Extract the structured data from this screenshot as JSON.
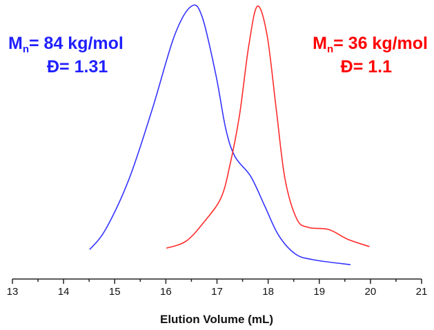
{
  "chart_data": {
    "type": "line",
    "title": "",
    "xlabel": "Elution Volume (mL)",
    "ylabel": "",
    "xlim": [
      13,
      21
    ],
    "x_ticks": [
      "13",
      "14",
      "15",
      "16",
      "17",
      "18",
      "19",
      "20",
      "21"
    ],
    "y_axis_shown": false,
    "grid": false,
    "series": [
      {
        "color": "#3333ff",
        "x": [
          14.51,
          14.82,
          15.28,
          15.73,
          16.17,
          16.5,
          16.71,
          16.98,
          17.17,
          17.35,
          17.66,
          17.93,
          18.2,
          18.52,
          18.87,
          19.61
        ],
        "y": [
          0.085,
          0.16,
          0.35,
          0.61,
          0.89,
          1.0,
          0.96,
          0.74,
          0.54,
          0.435,
          0.36,
          0.25,
          0.14,
          0.07,
          0.047,
          0.028
        ]
      },
      {
        "color": "#ff2a2a",
        "x": [
          16.01,
          16.4,
          16.77,
          17.08,
          17.25,
          17.44,
          17.62,
          17.79,
          17.98,
          18.16,
          18.33,
          18.56,
          18.79,
          19.19,
          19.55,
          19.98
        ],
        "y": [
          0.09,
          0.117,
          0.194,
          0.28,
          0.4,
          0.59,
          0.85,
          1.0,
          0.89,
          0.61,
          0.35,
          0.2,
          0.168,
          0.16,
          0.124,
          0.096
        ]
      }
    ],
    "annotations": [
      {
        "color": "#1f1fff",
        "mn_symbol": "M",
        "mn_sub": "n",
        "mn_value": "= 84 kg/mol",
        "dispersity": "Đ= 1.31"
      },
      {
        "color": "#ff0000",
        "mn_symbol": "M",
        "mn_sub": "n",
        "mn_value": "= 36 kg/mol",
        "dispersity": "Đ= 1.1"
      }
    ]
  }
}
